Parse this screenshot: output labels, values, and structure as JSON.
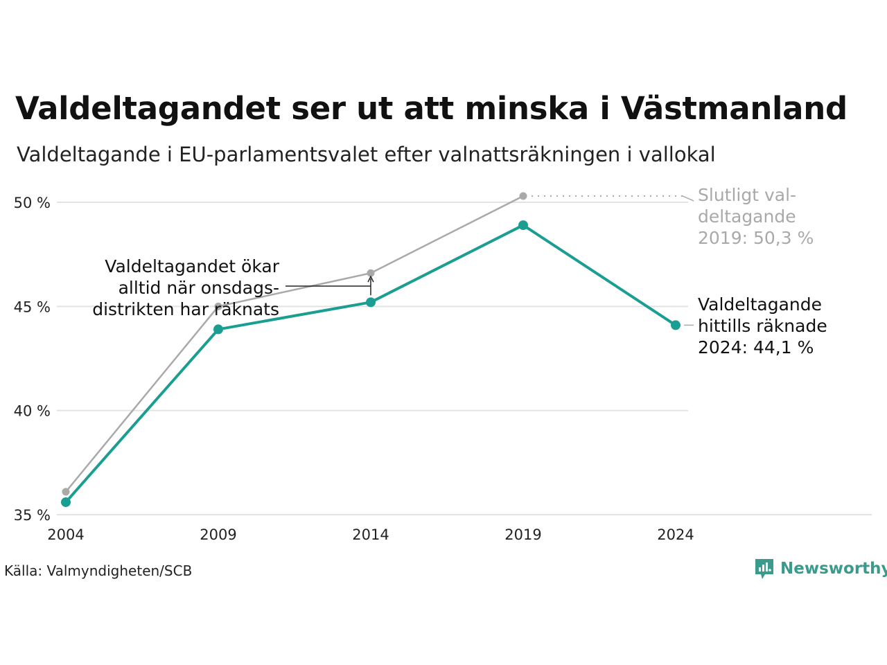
{
  "title": "Valdeltagandet ser ut att minska i Västmanland",
  "subtitle": "Valdeltagande i EU-parlamentsvalet efter valnattsräkningen i vallokal",
  "source": "Källa: Valmyndigheten/SCB",
  "brand": "Newsworthy",
  "colors": {
    "current": "#1a9e92",
    "final": "#a9a9a9",
    "grid": "#e3e3e3",
    "brand": "#3a9a8c"
  },
  "chart_data": {
    "type": "line",
    "x": [
      2004,
      2009,
      2014,
      2019,
      2024
    ],
    "x_tick_labels": [
      "2004",
      "2009",
      "2014",
      "2019",
      "2024"
    ],
    "y_ticks": [
      35,
      40,
      45,
      50
    ],
    "y_tick_labels": [
      "35 %",
      "40 %",
      "45 %",
      "50 %"
    ],
    "ylim": [
      35,
      50
    ],
    "grid": true,
    "series": [
      {
        "key": "final",
        "color": "#a9a9a9",
        "values": [
          36.1,
          45.0,
          46.6,
          50.3,
          null
        ]
      },
      {
        "key": "current",
        "color": "#1a9e92",
        "values": [
          35.6,
          43.9,
          45.2,
          48.9,
          44.1
        ]
      }
    ],
    "annotations": {
      "final_label": [
        "Slutligt val-",
        "deltagande",
        "2019: 50,3 %"
      ],
      "current_label": [
        "Valdeltagande",
        "hittills räknade",
        "2024: 44,1 %"
      ],
      "note": [
        "Valdeltagandet ökar",
        "alltid när onsdags-",
        "distrikten har räknats"
      ]
    }
  }
}
